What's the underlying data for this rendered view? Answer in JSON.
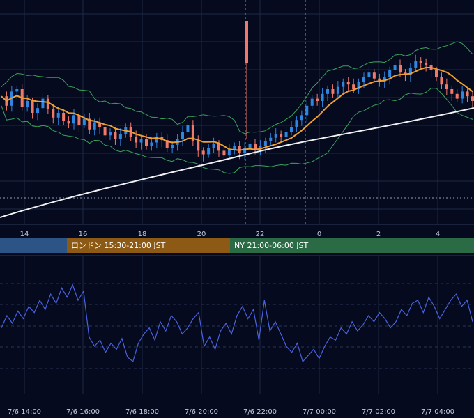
{
  "chart_data": [
    {
      "type": "candlestick",
      "overlays": [
        "bollinger-bands",
        "moving-average-orange",
        "moving-average-white"
      ],
      "x_ticks": [
        "14",
        "16",
        "18",
        "20",
        "22",
        "0",
        "2",
        "4"
      ],
      "price_path": [
        54,
        46,
        58,
        60,
        45,
        50,
        40,
        44,
        52,
        43,
        36,
        40,
        33,
        31,
        38,
        30,
        35,
        26,
        32,
        28,
        21,
        24,
        18,
        22,
        28,
        20,
        15,
        18,
        12,
        15,
        20,
        17,
        10,
        13,
        18,
        24,
        30,
        16,
        8,
        5,
        10,
        14,
        8,
        4,
        9,
        12,
        6,
        10,
        14,
        9,
        12,
        16,
        19,
        22,
        20,
        24,
        28,
        34,
        38,
        46,
        52,
        50,
        56,
        60,
        56,
        62,
        66,
        64,
        60,
        66,
        70,
        74,
        69,
        66,
        70,
        76,
        80,
        74,
        72,
        78,
        84,
        82,
        80,
        76,
        70,
        64,
        60,
        56,
        52,
        58,
        54,
        50
      ],
      "colors": {
        "up": "#2e86e0",
        "down": "#f07a6a",
        "bb": "#3aa35a",
        "ma_fast": "#f0a030",
        "ma_slow": "#f2f2f2",
        "grid": "#1f2a44",
        "background": "#050a1f"
      }
    },
    {
      "type": "line",
      "indicator": "oscillator",
      "x_ticks": [
        "7/6 14:00",
        "7/6 16:00",
        "7/6 18:00",
        "7/6 20:00",
        "7/6 22:00",
        "7/7 00:00",
        "7/7 02:00",
        "7/7 04:00"
      ],
      "values": [
        52,
        60,
        55,
        63,
        58,
        66,
        62,
        70,
        64,
        74,
        68,
        78,
        72,
        80,
        70,
        76,
        46,
        40,
        44,
        36,
        42,
        38,
        45,
        33,
        30,
        42,
        48,
        52,
        44,
        56,
        50,
        60,
        56,
        48,
        52,
        58,
        62,
        40,
        46,
        38,
        50,
        55,
        48,
        60,
        66,
        58,
        64,
        44,
        70,
        50,
        56,
        48,
        40,
        36,
        42,
        30,
        34,
        38,
        32,
        40,
        46,
        44,
        52,
        48,
        56,
        50,
        54,
        60,
        56,
        62,
        58,
        52,
        56,
        64,
        60,
        68,
        70,
        62,
        72,
        66,
        58,
        64,
        70,
        74,
        66,
        70,
        56
      ]
    }
  ],
  "sessions": [
    {
      "label": "",
      "color": "#2c5487"
    },
    {
      "label": "ロンドン 15:30-21:00 JST",
      "color": "#8c5a14"
    },
    {
      "label": "NY 21:00-06:00 JST",
      "color": "#2a6a44"
    }
  ]
}
